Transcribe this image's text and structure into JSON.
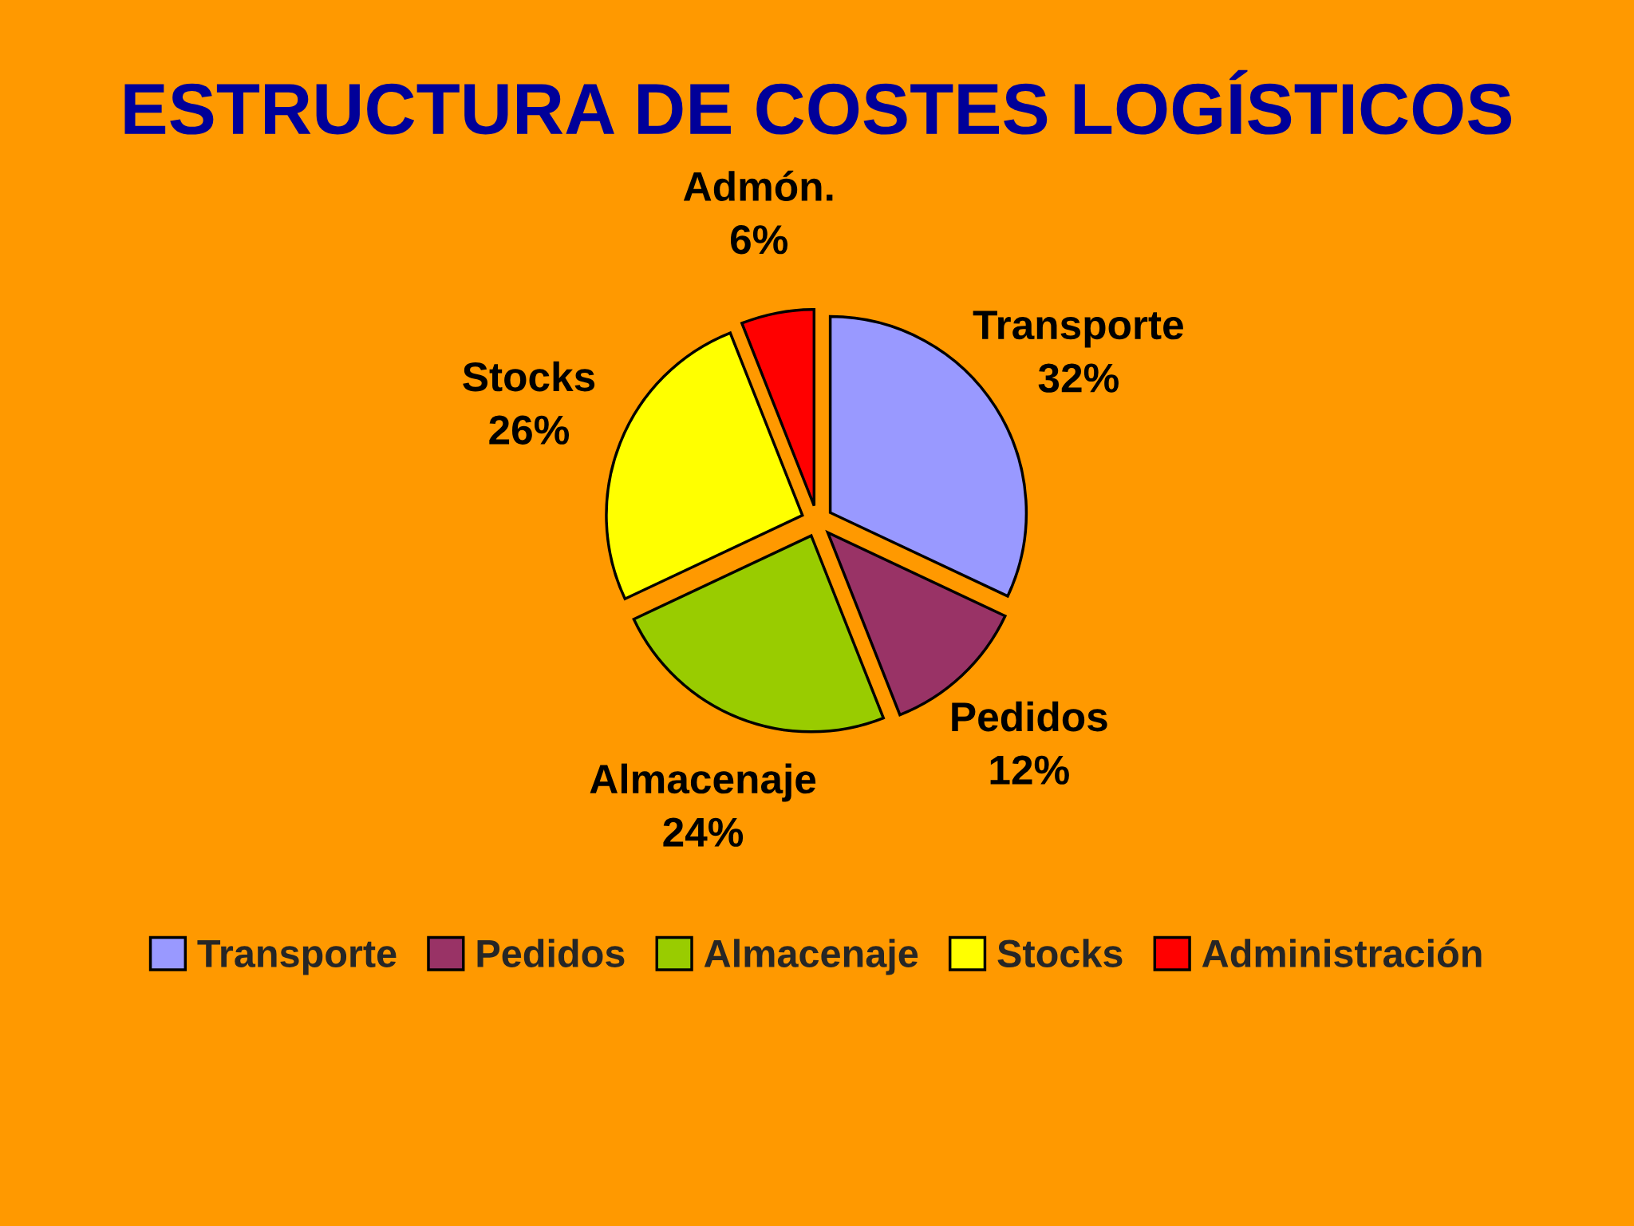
{
  "chart_data": {
    "type": "pie",
    "title": "ESTRUCTURA DE COSTES LOGÍSTICOS",
    "categories": [
      "Transporte",
      "Pedidos",
      "Almacenaje",
      "Stocks",
      "Administración"
    ],
    "values": [
      32,
      12,
      24,
      26,
      6
    ],
    "colors": [
      "#9999ff",
      "#993366",
      "#99cc00",
      "#ffff00",
      "#ff0000"
    ],
    "value_labels": [
      "Transporte\n32%",
      "Pedidos\n12%",
      "Almacenaje\n24%",
      "Stocks\n26%",
      "Admón.\n6%"
    ],
    "legend": "bottom"
  }
}
